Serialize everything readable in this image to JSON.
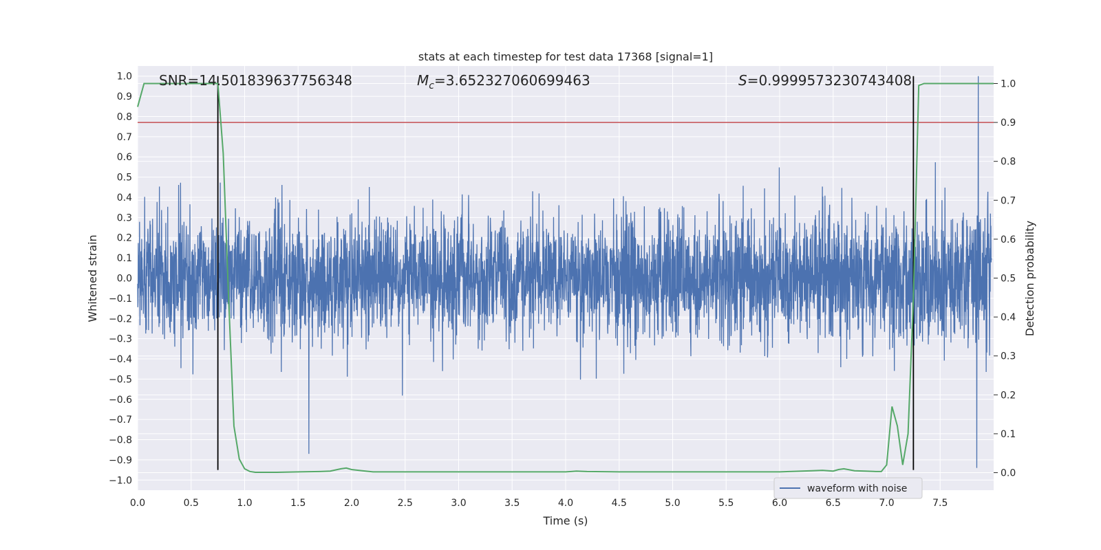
{
  "chart_data": {
    "type": "line",
    "title": "stats at each timestep for test data 17368 [signal=1]",
    "xlabel": "Time (s)",
    "ylabel_left": "Whitened strain",
    "ylabel_right": "Detection probability",
    "xlim": [
      0.0,
      8.0
    ],
    "ylim_left": [
      -1.05,
      1.05
    ],
    "ylim_right": [
      -0.045,
      1.045
    ],
    "x_ticks": [
      "0.0",
      "0.5",
      "1.0",
      "1.5",
      "2.0",
      "2.5",
      "3.0",
      "3.5",
      "4.0",
      "4.5",
      "5.0",
      "5.5",
      "6.0",
      "6.5",
      "7.0",
      "7.5"
    ],
    "y_ticks_left": [
      "1.0",
      "0.9",
      "0.8",
      "0.7",
      "0.6",
      "0.5",
      "0.4",
      "0.3",
      "0.2",
      "0.1",
      "0.0",
      "−0.1",
      "−0.2",
      "−0.3",
      "−0.4",
      "−0.5",
      "−0.6",
      "−0.7",
      "−0.8",
      "−0.9",
      "−1.0"
    ],
    "y_ticks_right": [
      "1.0",
      "0.9",
      "0.8",
      "0.7",
      "0.6",
      "0.5",
      "0.4",
      "0.3",
      "0.2",
      "0.1",
      "0.0"
    ],
    "grid": true,
    "legend_position": "lower-right",
    "annotations": {
      "snr": "SNR=14.501839637756348",
      "mc_prefix": "M",
      "mc_sub": "c",
      "mc_value": "=3.652327060699463",
      "s_prefix": "S",
      "s_value": "=0.9999573230743408"
    },
    "series": [
      {
        "name": "waveform with noise",
        "axis": "left",
        "color": "#4c72b0",
        "description_values": "dense noisy strain, mostly within ±0.45, peaks near 1.0 at t≈7.85"
      },
      {
        "axis": "right",
        "color": "#55a868",
        "x": [
          0.0,
          0.06,
          0.12,
          0.2,
          0.3,
          0.4,
          0.5,
          0.6,
          0.7,
          0.75,
          0.8,
          0.85,
          0.9,
          0.95,
          1.0,
          1.05,
          1.1,
          1.2,
          1.3,
          1.5,
          1.7,
          1.8,
          1.9,
          1.95,
          2.0,
          2.1,
          2.2,
          2.5,
          3.0,
          3.5,
          4.0,
          4.05,
          4.1,
          4.2,
          4.5,
          4.8,
          5.0,
          5.5,
          6.0,
          6.3,
          6.4,
          6.5,
          6.55,
          6.6,
          6.7,
          6.8,
          6.9,
          6.95,
          7.0,
          7.05,
          7.1,
          7.15,
          7.2,
          7.25,
          7.3,
          7.35,
          7.4,
          7.5,
          7.6,
          7.8,
          8.0
        ],
        "values": [
          0.94,
          1.0,
          1.0,
          1.0,
          1.0,
          1.0,
          1.0,
          1.0,
          1.0,
          1.0,
          0.82,
          0.45,
          0.12,
          0.035,
          0.01,
          0.003,
          0.001,
          0.001,
          0.001,
          0.002,
          0.003,
          0.004,
          0.01,
          0.012,
          0.008,
          0.005,
          0.002,
          0.002,
          0.002,
          0.002,
          0.002,
          0.003,
          0.004,
          0.003,
          0.002,
          0.002,
          0.002,
          0.002,
          0.002,
          0.005,
          0.006,
          0.004,
          0.008,
          0.01,
          0.005,
          0.004,
          0.003,
          0.003,
          0.02,
          0.17,
          0.12,
          0.02,
          0.1,
          0.45,
          0.995,
          1.0,
          1.0,
          1.0,
          1.0,
          1.0,
          1.0
        ]
      },
      {
        "axis": "right",
        "color": "#c44e52",
        "type": "hline",
        "value": 0.9
      }
    ],
    "vlines": [
      {
        "x": 0.75,
        "ymin": -0.95,
        "ymax": 1.0,
        "color": "#000000"
      },
      {
        "x": 7.25,
        "ymin": -0.95,
        "ymax": 1.0,
        "color": "#000000"
      }
    ]
  }
}
